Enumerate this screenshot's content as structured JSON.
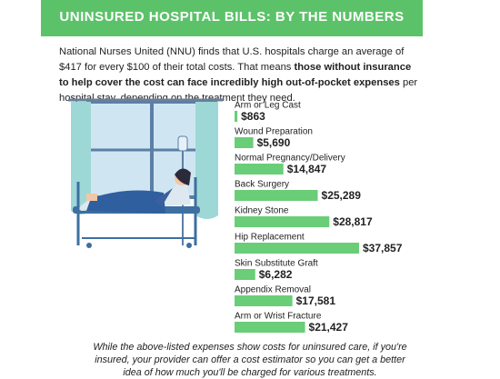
{
  "chart_data": {
    "type": "bar",
    "title": "UNINSURED HOSPITAL BILLS: BY THE NUMBERS",
    "intro": [
      "National Nurses United (NNU) finds that U.S. hospitals charge an average of $417 for every $100 of their total costs. That means ",
      "those without insurance to help cover the cost can face incredibly high out-of-pocket expenses",
      " per hospital stay, depending on the treatment they need."
    ],
    "categories": [
      "Arm or Leg Cast",
      "Wound Preparation",
      "Normal Pregnancy/Delivery",
      "Back Surgery",
      "Kidney Stone",
      "Hip Replacement",
      "Skin Substitute Graft",
      "Appendix Removal",
      "Arm or Wrist Fracture"
    ],
    "values": [
      863,
      5690,
      14847,
      25289,
      28817,
      37857,
      6282,
      17581,
      21427
    ],
    "value_labels": [
      "$863",
      "$5,690",
      "$14,847",
      "$25,289",
      "$28,817",
      "$37,857",
      "$6,282",
      "$17,581",
      "$21,427"
    ],
    "color": "#6acd78",
    "footnote": "While the above-listed expenses show costs for uninsured care, if you're insured, your provider can offer a cost estimator so you can get a better idea of how much you'll be charged for various treatments."
  }
}
